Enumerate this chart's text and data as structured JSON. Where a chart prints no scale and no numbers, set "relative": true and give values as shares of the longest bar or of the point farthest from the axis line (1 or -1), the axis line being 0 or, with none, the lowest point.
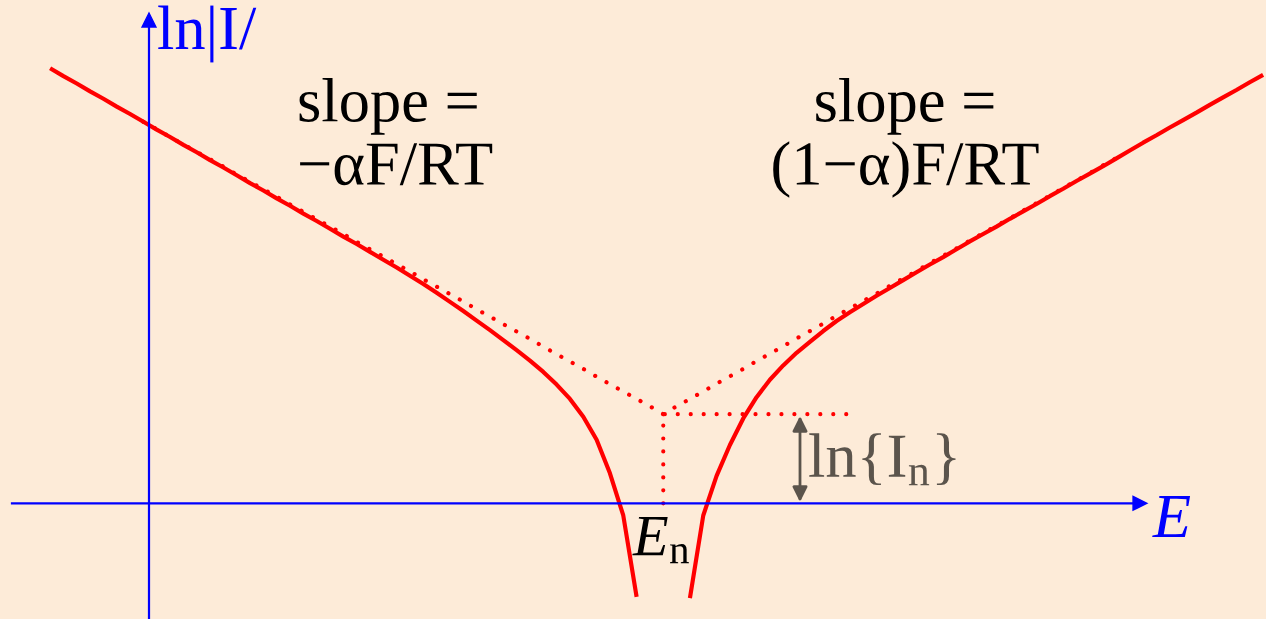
{
  "chart_data": {
    "type": "line",
    "relative": true,
    "xlabel": "E",
    "ylabel": "ln|I/",
    "categories": [
      null,
      null,
      null,
      null,
      null,
      null,
      null,
      null,
      null,
      null,
      null,
      null,
      null,
      null,
      null,
      null,
      null,
      null,
      null,
      null,
      null,
      null,
      null,
      null,
      null,
      null,
      null,
      null,
      null,
      null,
      null,
      null,
      null,
      null,
      null,
      null,
      null,
      null,
      null,
      null,
      null,
      null,
      null,
      null,
      null,
      null,
      null,
      null,
      null,
      null,
      null,
      null,
      null,
      null,
      null,
      null,
      null,
      null,
      null,
      null,
      null,
      null,
      null,
      null,
      null,
      null,
      null,
      null,
      null,
      null,
      null,
      null,
      null,
      null,
      null,
      null,
      null,
      null,
      null,
      null,
      null,
      null,
      null,
      null,
      null,
      null,
      null,
      null,
      null,
      null,
      null,
      null
    ],
    "series": [
      {
        "color": "#ff0000",
        "line_style": "solid",
        "values": [
          1.0,
          0.982,
          0.965,
          0.947,
          0.93,
          0.912,
          0.895,
          0.877,
          0.859,
          0.842,
          0.824,
          0.807,
          0.789,
          0.772,
          0.754,
          0.736,
          0.719,
          0.701,
          0.684,
          0.666,
          0.649,
          0.631,
          0.613,
          0.596,
          0.578,
          0.56,
          0.542,
          0.523,
          0.504,
          0.484,
          0.463,
          0.442,
          0.42,
          0.398,
          0.375,
          0.352,
          0.328,
          0.302,
          0.273,
          0.24,
          0.199,
          0.146,
          0.069,
          -0.028,
          -0.215,
          null,
          null,
          null,
          null,
          null,
          null,
          null,
          null,
          null,
          null,
          null,
          null,
          null,
          null,
          null,
          null,
          null,
          null,
          null,
          null,
          null,
          null,
          null,
          null,
          null,
          null,
          null,
          null,
          null,
          null,
          null,
          null,
          null,
          null,
          null,
          null,
          null,
          null,
          null,
          null,
          null,
          null,
          null,
          null,
          null,
          null,
          null
        ]
      },
      {
        "color": "#ff0000",
        "line_style": "solid",
        "values": [
          null,
          null,
          null,
          null,
          null,
          null,
          null,
          null,
          null,
          null,
          null,
          null,
          null,
          null,
          null,
          null,
          null,
          null,
          null,
          null,
          null,
          null,
          null,
          null,
          null,
          null,
          null,
          null,
          null,
          null,
          null,
          null,
          null,
          null,
          null,
          null,
          null,
          null,
          null,
          null,
          null,
          null,
          null,
          null,
          null,
          null,
          null,
          null,
          -0.218,
          -0.028,
          0.063,
          0.134,
          0.195,
          0.244,
          0.284,
          0.317,
          0.346,
          0.371,
          0.396,
          0.419,
          0.439,
          0.458,
          0.477,
          0.495,
          0.513,
          0.531,
          0.549,
          0.566,
          0.584,
          0.602,
          0.619,
          0.636,
          0.654,
          0.671,
          0.688,
          0.706,
          0.723,
          0.741,
          0.758,
          0.775,
          0.793,
          0.811,
          0.829,
          0.846,
          0.864,
          0.881,
          0.898,
          0.916,
          0.933,
          0.95,
          0.968,
          0.985
        ]
      },
      {
        "color": "#ff0000",
        "line_style": "dotted",
        "values": [
          null,
          null,
          null,
          null,
          null,
          null,
          null,
          0.877,
          0.86,
          0.842,
          0.825,
          0.808,
          0.791,
          0.774,
          0.756,
          0.739,
          0.722,
          0.705,
          0.687,
          0.67,
          0.653,
          0.636,
          0.619,
          0.601,
          0.584,
          0.567,
          0.55,
          0.533,
          0.515,
          0.498,
          0.481,
          0.464,
          0.446,
          0.429,
          0.412,
          0.395,
          0.378,
          0.36,
          0.343,
          0.326,
          0.309,
          0.291,
          0.274,
          0.257,
          0.24,
          0.223,
          0.205,
          null,
          null,
          null,
          null,
          null,
          null,
          null,
          null,
          null,
          null,
          null,
          null,
          null,
          null,
          null,
          null,
          null,
          null,
          null,
          null,
          null,
          null,
          null,
          null,
          null,
          null,
          null,
          null,
          null,
          null,
          null,
          null,
          null,
          null,
          null,
          null,
          null,
          null,
          null,
          null,
          null,
          null,
          null,
          null,
          null
        ]
      },
      {
        "color": "#ff0000",
        "line_style": "dotted",
        "values": [
          null,
          null,
          null,
          null,
          null,
          null,
          null,
          null,
          null,
          null,
          null,
          null,
          null,
          null,
          null,
          null,
          null,
          null,
          null,
          null,
          null,
          null,
          null,
          null,
          null,
          null,
          null,
          null,
          null,
          null,
          null,
          null,
          null,
          null,
          null,
          null,
          null,
          null,
          null,
          null,
          null,
          null,
          null,
          null,
          null,
          null,
          0.205,
          0.223,
          0.24,
          0.257,
          0.275,
          0.292,
          0.309,
          0.327,
          0.344,
          0.361,
          0.379,
          0.396,
          0.413,
          0.431,
          0.448,
          0.465,
          0.482,
          0.5,
          0.517,
          0.534,
          0.552,
          0.569,
          0.586,
          0.604,
          0.621,
          0.638,
          0.655,
          0.673,
          0.69,
          0.707,
          0.725,
          0.742,
          0.759,
          0.777,
          0.794,
          null,
          null,
          null,
          null,
          null,
          null,
          null,
          null,
          null,
          null,
          null
        ]
      },
      {
        "type": "step",
        "color": "#ff0000",
        "line_style": "dotted",
        "values": [
          null,
          null,
          null,
          null,
          null,
          null,
          null,
          null,
          null,
          null,
          null,
          null,
          null,
          null,
          null,
          null,
          null,
          null,
          null,
          null,
          null,
          null,
          null,
          null,
          null,
          null,
          null,
          null,
          null,
          null,
          null,
          null,
          null,
          null,
          null,
          null,
          null,
          null,
          null,
          null,
          null,
          null,
          null,
          null,
          null,
          null,
          0,
          0.205,
          0.205,
          0.205,
          0.205,
          0.205,
          0.205,
          0.205,
          0.205,
          0.205,
          0.205,
          0.205,
          0.205,
          0.205,
          0.205,
          null,
          null,
          null,
          null,
          null,
          null,
          null,
          null,
          null,
          null,
          null,
          null,
          null,
          null,
          null,
          null,
          null,
          null,
          null,
          null,
          null,
          null,
          null,
          null,
          null,
          null,
          null,
          null,
          null,
          null,
          null
        ]
      }
    ],
    "ref_lines": [
      {
        "axis": "y",
        "value": 0,
        "color": "#0000ff"
      }
    ],
    "annotations": [
      "slope =\n−αF/RT",
      "slope =\n(1−α)F/RT",
      "ln{I$_{n}$}",
      "E$_{n}$"
    ]
  }
}
